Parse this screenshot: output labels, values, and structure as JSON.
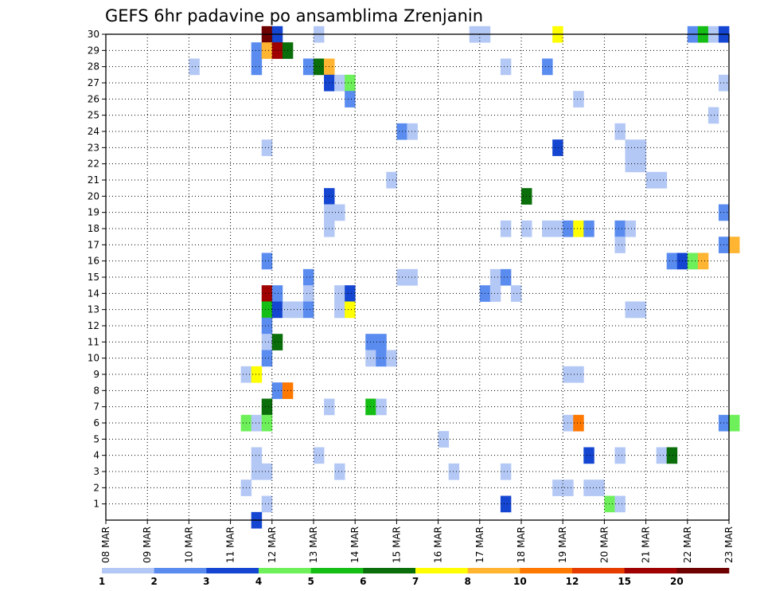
{
  "chart_data": {
    "type": "heatmap",
    "title": "GEFS 6hr padavine po ansamblima Zrenjanin",
    "xlabel": "",
    "ylabel": "",
    "x_ticks": [
      "08 MAR",
      "09 MAR",
      "10 MAR",
      "11 MAR",
      "12 MAR",
      "13 MAR",
      "14 MAR",
      "15 MAR",
      "16 MAR",
      "17 MAR",
      "18 MAR",
      "19 MAR",
      "20 MAR",
      "21 MAR",
      "22 MAR",
      "23 MAR"
    ],
    "y_ticks": [
      1,
      2,
      3,
      4,
      5,
      6,
      7,
      8,
      9,
      10,
      11,
      12,
      13,
      14,
      15,
      16,
      17,
      18,
      19,
      20,
      21,
      22,
      23,
      24,
      25,
      26,
      27,
      28,
      29,
      30
    ],
    "xlim_days": [
      0,
      15
    ],
    "ylim": [
      0,
      30
    ],
    "grid": true,
    "colorbar": {
      "levels": [
        1,
        2,
        3,
        4,
        5,
        6,
        7,
        8,
        10,
        12,
        15,
        20
      ],
      "colors": [
        "#b4c8f5",
        "#5a8cf0",
        "#1446d2",
        "#6ef05a",
        "#14be14",
        "#0a6e0a",
        "#ffff00",
        "#ffb432",
        "#ff7800",
        "#e63c00",
        "#a00000",
        "#6e0000"
      ]
    },
    "cells": [
      {
        "t": 3.75,
        "m": 30,
        "c": 11
      },
      {
        "t": 4.0,
        "m": 30,
        "c": 2
      },
      {
        "t": 5.0,
        "m": 30,
        "c": 0
      },
      {
        "t": 8.75,
        "m": 30,
        "c": 0
      },
      {
        "t": 9.0,
        "m": 30,
        "c": 0
      },
      {
        "t": 10.75,
        "m": 30,
        "c": 6
      },
      {
        "t": 14.0,
        "m": 30,
        "c": 1
      },
      {
        "t": 14.25,
        "m": 30,
        "c": 4
      },
      {
        "t": 14.5,
        "m": 30,
        "c": 0
      },
      {
        "t": 14.75,
        "m": 30,
        "c": 2
      },
      {
        "t": 3.5,
        "m": 29,
        "c": 1
      },
      {
        "t": 3.75,
        "m": 29,
        "c": 7
      },
      {
        "t": 4.0,
        "m": 29,
        "c": 10
      },
      {
        "t": 4.25,
        "m": 29,
        "c": 5
      },
      {
        "t": 2.0,
        "m": 28,
        "c": 0
      },
      {
        "t": 3.5,
        "m": 28,
        "c": 1
      },
      {
        "t": 4.75,
        "m": 28,
        "c": 1
      },
      {
        "t": 5.0,
        "m": 28,
        "c": 5
      },
      {
        "t": 5.25,
        "m": 28,
        "c": 7
      },
      {
        "t": 9.5,
        "m": 28,
        "c": 0
      },
      {
        "t": 10.5,
        "m": 28,
        "c": 1
      },
      {
        "t": 5.25,
        "m": 27,
        "c": 2
      },
      {
        "t": 5.5,
        "m": 27,
        "c": 0
      },
      {
        "t": 5.75,
        "m": 27,
        "c": 3
      },
      {
        "t": 14.75,
        "m": 27,
        "c": 0
      },
      {
        "t": 5.75,
        "m": 26,
        "c": 1
      },
      {
        "t": 11.25,
        "m": 26,
        "c": 0
      },
      {
        "t": 14.5,
        "m": 25,
        "c": 0
      },
      {
        "t": 7.0,
        "m": 24,
        "c": 1
      },
      {
        "t": 7.25,
        "m": 24,
        "c": 0
      },
      {
        "t": 12.25,
        "m": 24,
        "c": 0
      },
      {
        "t": 3.75,
        "m": 23,
        "c": 0
      },
      {
        "t": 10.75,
        "m": 23,
        "c": 2
      },
      {
        "t": 12.5,
        "m": 23,
        "c": 0
      },
      {
        "t": 12.75,
        "m": 23,
        "c": 0
      },
      {
        "t": 12.5,
        "m": 22,
        "c": 0
      },
      {
        "t": 12.75,
        "m": 22,
        "c": 0
      },
      {
        "t": 6.75,
        "m": 21,
        "c": 0
      },
      {
        "t": 13.0,
        "m": 21,
        "c": 0
      },
      {
        "t": 13.25,
        "m": 21,
        "c": 0
      },
      {
        "t": 5.25,
        "m": 20,
        "c": 2
      },
      {
        "t": 10.0,
        "m": 20,
        "c": 5
      },
      {
        "t": 5.25,
        "m": 19,
        "c": 0
      },
      {
        "t": 5.5,
        "m": 19,
        "c": 0
      },
      {
        "t": 14.75,
        "m": 19,
        "c": 1
      },
      {
        "t": 5.25,
        "m": 18,
        "c": 0
      },
      {
        "t": 9.5,
        "m": 18,
        "c": 0
      },
      {
        "t": 10.0,
        "m": 18,
        "c": 0
      },
      {
        "t": 10.5,
        "m": 18,
        "c": 0
      },
      {
        "t": 10.75,
        "m": 18,
        "c": 0
      },
      {
        "t": 11.0,
        "m": 18,
        "c": 1
      },
      {
        "t": 11.25,
        "m": 18,
        "c": 6
      },
      {
        "t": 11.5,
        "m": 18,
        "c": 1
      },
      {
        "t": 12.25,
        "m": 18,
        "c": 1
      },
      {
        "t": 12.5,
        "m": 18,
        "c": 0
      },
      {
        "t": 12.25,
        "m": 17,
        "c": 0
      },
      {
        "t": 14.75,
        "m": 17,
        "c": 1
      },
      {
        "t": 15.0,
        "m": 17,
        "c": 7
      },
      {
        "t": 3.75,
        "m": 16,
        "c": 1
      },
      {
        "t": 13.5,
        "m": 16,
        "c": 1
      },
      {
        "t": 13.75,
        "m": 16,
        "c": 2
      },
      {
        "t": 14.0,
        "m": 16,
        "c": 3
      },
      {
        "t": 14.25,
        "m": 16,
        "c": 7
      },
      {
        "t": 4.75,
        "m": 15,
        "c": 1
      },
      {
        "t": 7.0,
        "m": 15,
        "c": 0
      },
      {
        "t": 7.25,
        "m": 15,
        "c": 0
      },
      {
        "t": 9.25,
        "m": 15,
        "c": 0
      },
      {
        "t": 9.5,
        "m": 15,
        "c": 1
      },
      {
        "t": 3.75,
        "m": 14,
        "c": 10
      },
      {
        "t": 4.0,
        "m": 14,
        "c": 1
      },
      {
        "t": 4.75,
        "m": 14,
        "c": 0
      },
      {
        "t": 5.5,
        "m": 14,
        "c": 0
      },
      {
        "t": 5.75,
        "m": 14,
        "c": 2
      },
      {
        "t": 9.0,
        "m": 14,
        "c": 1
      },
      {
        "t": 9.25,
        "m": 14,
        "c": 0
      },
      {
        "t": 9.75,
        "m": 14,
        "c": 0
      },
      {
        "t": 3.75,
        "m": 13,
        "c": 4
      },
      {
        "t": 4.0,
        "m": 13,
        "c": 2
      },
      {
        "t": 4.25,
        "m": 13,
        "c": 0
      },
      {
        "t": 4.5,
        "m": 13,
        "c": 0
      },
      {
        "t": 4.75,
        "m": 13,
        "c": 1
      },
      {
        "t": 5.5,
        "m": 13,
        "c": 0
      },
      {
        "t": 5.75,
        "m": 13,
        "c": 6
      },
      {
        "t": 12.5,
        "m": 13,
        "c": 0
      },
      {
        "t": 12.75,
        "m": 13,
        "c": 0
      },
      {
        "t": 3.75,
        "m": 12,
        "c": 1
      },
      {
        "t": 3.75,
        "m": 11,
        "c": 0
      },
      {
        "t": 4.0,
        "m": 11,
        "c": 5
      },
      {
        "t": 6.25,
        "m": 11,
        "c": 1
      },
      {
        "t": 6.5,
        "m": 11,
        "c": 1
      },
      {
        "t": 3.75,
        "m": 10,
        "c": 1
      },
      {
        "t": 6.25,
        "m": 10,
        "c": 0
      },
      {
        "t": 6.5,
        "m": 10,
        "c": 1
      },
      {
        "t": 6.75,
        "m": 10,
        "c": 0
      },
      {
        "t": 3.25,
        "m": 9,
        "c": 0
      },
      {
        "t": 3.5,
        "m": 9,
        "c": 6
      },
      {
        "t": 11.0,
        "m": 9,
        "c": 0
      },
      {
        "t": 11.25,
        "m": 9,
        "c": 0
      },
      {
        "t": 4.0,
        "m": 8,
        "c": 1
      },
      {
        "t": 4.25,
        "m": 8,
        "c": 8
      },
      {
        "t": 3.75,
        "m": 7,
        "c": 5
      },
      {
        "t": 5.25,
        "m": 7,
        "c": 0
      },
      {
        "t": 6.25,
        "m": 7,
        "c": 4
      },
      {
        "t": 6.5,
        "m": 7,
        "c": 0
      },
      {
        "t": 3.25,
        "m": 6,
        "c": 3
      },
      {
        "t": 3.5,
        "m": 6,
        "c": 0
      },
      {
        "t": 3.75,
        "m": 6,
        "c": 3
      },
      {
        "t": 11.0,
        "m": 6,
        "c": 0
      },
      {
        "t": 11.25,
        "m": 6,
        "c": 8
      },
      {
        "t": 14.75,
        "m": 6,
        "c": 1
      },
      {
        "t": 15.0,
        "m": 6,
        "c": 3
      },
      {
        "t": 8.0,
        "m": 5,
        "c": 0
      },
      {
        "t": 3.5,
        "m": 4,
        "c": 0
      },
      {
        "t": 5.0,
        "m": 4,
        "c": 0
      },
      {
        "t": 11.5,
        "m": 4,
        "c": 2
      },
      {
        "t": 12.25,
        "m": 4,
        "c": 0
      },
      {
        "t": 13.25,
        "m": 4,
        "c": 0
      },
      {
        "t": 13.5,
        "m": 4,
        "c": 5
      },
      {
        "t": 3.5,
        "m": 3,
        "c": 0
      },
      {
        "t": 3.75,
        "m": 3,
        "c": 0
      },
      {
        "t": 5.5,
        "m": 3,
        "c": 0
      },
      {
        "t": 8.25,
        "m": 3,
        "c": 0
      },
      {
        "t": 9.5,
        "m": 3,
        "c": 0
      },
      {
        "t": 3.25,
        "m": 2,
        "c": 0
      },
      {
        "t": 10.75,
        "m": 2,
        "c": 0
      },
      {
        "t": 11.0,
        "m": 2,
        "c": 0
      },
      {
        "t": 11.5,
        "m": 2,
        "c": 0
      },
      {
        "t": 11.75,
        "m": 2,
        "c": 0
      },
      {
        "t": 3.75,
        "m": 1,
        "c": 0
      },
      {
        "t": 9.5,
        "m": 1,
        "c": 2
      },
      {
        "t": 12.0,
        "m": 1,
        "c": 3
      },
      {
        "t": 12.25,
        "m": 1,
        "c": 0
      },
      {
        "t": 3.5,
        "m": 0,
        "c": 2
      }
    ]
  }
}
